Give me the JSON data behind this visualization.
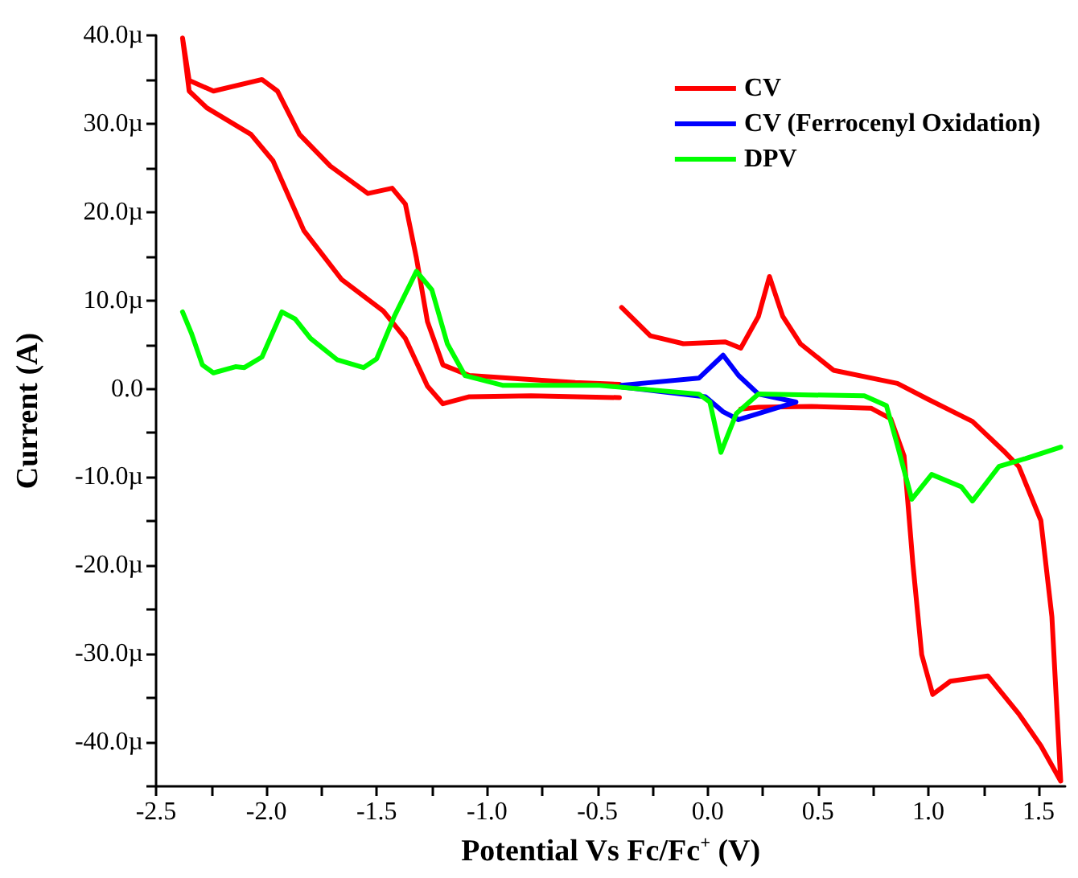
{
  "chart_data": {
    "type": "line",
    "xlabel": "Potential Vs Fc/Fc$^{+}$ (V)",
    "ylabel": "Current (A)",
    "xlim": [
      -2.5,
      1.62
    ],
    "ylim": [
      -45,
      40
    ],
    "xticks": [
      {
        "value": -2.5,
        "label": "-2.5"
      },
      {
        "value": -2.25,
        "label": null
      },
      {
        "value": -2,
        "label": "-2.0"
      },
      {
        "value": -1.75,
        "label": null
      },
      {
        "value": -1.5,
        "label": "-1.5"
      },
      {
        "value": -1.25,
        "label": null
      },
      {
        "value": -1,
        "label": "-1.0"
      },
      {
        "value": -0.75,
        "label": null
      },
      {
        "value": -0.5,
        "label": "-0.5"
      },
      {
        "value": -0.25,
        "label": null
      },
      {
        "value": 0,
        "label": "0.0"
      },
      {
        "value": 0.25,
        "label": null
      },
      {
        "value": 0.5,
        "label": "0.5"
      },
      {
        "value": 0.75,
        "label": null
      },
      {
        "value": 1,
        "label": "1.0"
      },
      {
        "value": 1.25,
        "label": null
      },
      {
        "value": 1.5,
        "label": "1.5"
      }
    ],
    "yticks": [
      {
        "value": -45,
        "label": null
      },
      {
        "value": -40,
        "label": "-40.0µ"
      },
      {
        "value": -35,
        "label": null
      },
      {
        "value": -30,
        "label": "-30.0µ"
      },
      {
        "value": -25,
        "label": null
      },
      {
        "value": -20,
        "label": "-20.0µ"
      },
      {
        "value": -15,
        "label": null
      },
      {
        "value": -10,
        "label": "-10.0µ"
      },
      {
        "value": -5,
        "label": null
      },
      {
        "value": 0,
        "label": "0.0"
      },
      {
        "value": 5,
        "label": null
      },
      {
        "value": 10,
        "label": "10.0µ"
      },
      {
        "value": 15,
        "label": null
      },
      {
        "value": 20,
        "label": "20.0µ"
      },
      {
        "value": 25,
        "label": null
      },
      {
        "value": 30,
        "label": "30.0µ"
      },
      {
        "value": 35,
        "label": null
      },
      {
        "value": 40,
        "label": "40.0µ"
      }
    ],
    "grid": false,
    "legend": "top right",
    "marker": "none",
    "line_style": "solid",
    "series": [
      {
        "name": "CV",
        "color": "#ff0000",
        "x": [
          -0.4,
          -0.6,
          -1.08,
          -1.2,
          -1.27,
          -1.32,
          -1.37,
          -1.43,
          -1.54,
          -1.71,
          -1.85,
          -1.95,
          -2.02,
          -2.24,
          -2.35,
          -2.38,
          -2.35,
          -2.27,
          -2.07,
          -1.97,
          -1.83,
          -1.66,
          -1.47,
          -1.37,
          -1.27,
          -1.2,
          -1.08,
          -0.8,
          -0.4,
          null,
          -0.39,
          -0.26,
          -0.11,
          0.08,
          0.15,
          0.23,
          0.28,
          0.34,
          0.42,
          0.57,
          0.86,
          1.0,
          1.2,
          1.34,
          1.41,
          1.51,
          1.56,
          1.6,
          1.51,
          1.41,
          1.27,
          1.1,
          1.02,
          0.97,
          0.93,
          0.89,
          0.83,
          0.74,
          0.47,
          0.23,
          0.15
        ],
        "values": [
          0.5,
          0.7,
          1.5,
          2.7,
          7.6,
          14.8,
          20.9,
          22.7,
          22.1,
          25.2,
          28.8,
          33.7,
          35.0,
          33.7,
          34.9,
          39.7,
          33.7,
          31.8,
          28.8,
          25.8,
          17.9,
          12.4,
          8.8,
          5.7,
          0.3,
          -1.7,
          -0.9,
          -0.8,
          -1.0,
          null,
          9.2,
          6.0,
          5.1,
          5.3,
          4.6,
          8.2,
          12.7,
          8.2,
          5.1,
          2.1,
          0.6,
          -1.2,
          -3.7,
          -7.0,
          -8.8,
          -14.9,
          -25.8,
          -44.4,
          -40.4,
          -36.8,
          -32.5,
          -33.1,
          -34.6,
          -30.1,
          -19.8,
          -7.6,
          -3.4,
          -2.2,
          -2.0,
          -2.1,
          -2.3
        ]
      },
      {
        "name": "CV (Ferrocenyl Oxidation)",
        "color": "#0000ff",
        "x": [
          -0.39,
          -0.04,
          0.07,
          0.14,
          0.23,
          0.4,
          0.23,
          0.14,
          0.07,
          -0.01,
          -0.39
        ],
        "values": [
          0.4,
          1.2,
          3.8,
          1.5,
          -0.6,
          -1.5,
          -2.8,
          -3.5,
          -2.6,
          -0.9,
          0.2
        ]
      },
      {
        "name": "DPV",
        "color": "#00ff00",
        "x": [
          -2.38,
          -2.34,
          -2.29,
          -2.24,
          -2.14,
          -2.1,
          -2.02,
          -1.93,
          -1.87,
          -1.8,
          -1.68,
          -1.56,
          -1.5,
          -1.42,
          -1.32,
          -1.25,
          -1.18,
          -1.1,
          -0.93,
          -0.5,
          -0.04,
          0.01,
          0.06,
          0.13,
          0.23,
          0.71,
          0.81,
          0.86,
          0.925,
          1.015,
          1.15,
          1.2,
          1.32,
          1.44,
          1.6
        ],
        "values": [
          8.7,
          6.3,
          2.7,
          1.8,
          2.5,
          2.4,
          3.6,
          8.7,
          7.9,
          5.7,
          3.3,
          2.4,
          3.4,
          8.2,
          13.3,
          11.2,
          5.1,
          1.5,
          0.4,
          0.4,
          -0.6,
          -1.5,
          -7.2,
          -2.8,
          -0.6,
          -0.8,
          -1.9,
          -6.4,
          -12.5,
          -9.7,
          -11.1,
          -12.7,
          -8.8,
          -7.9,
          -6.6
        ]
      }
    ]
  }
}
